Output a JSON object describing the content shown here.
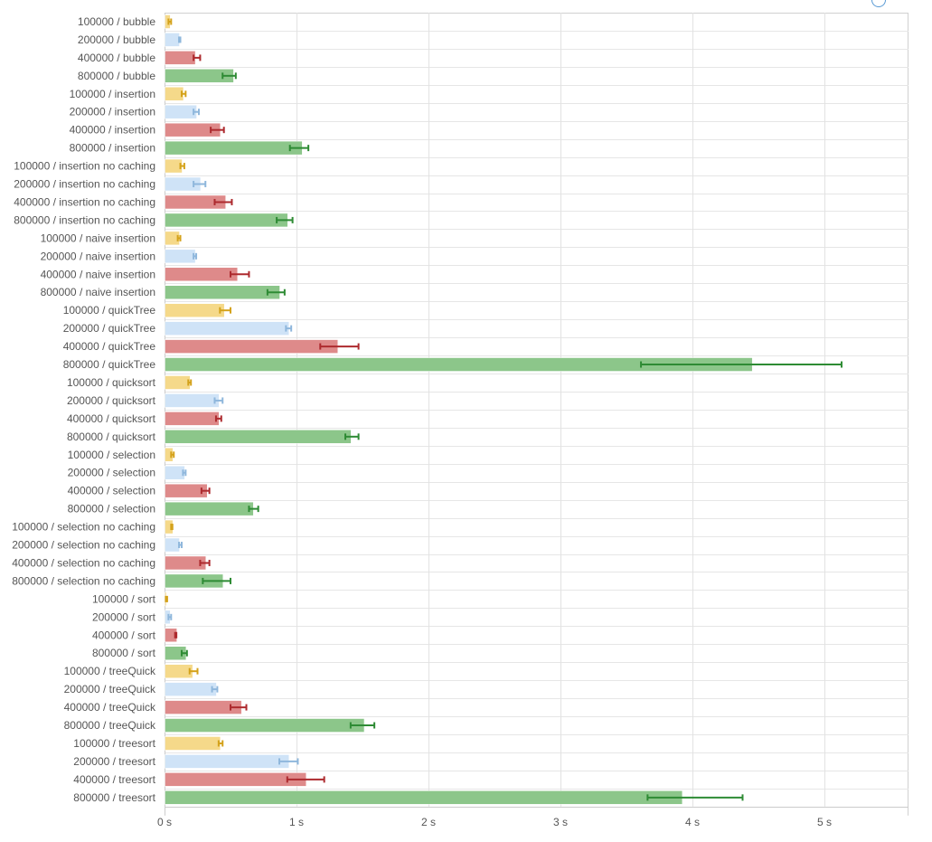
{
  "chart_data": {
    "type": "bar",
    "orientation": "horizontal",
    "title": "",
    "xlabel": "",
    "ylabel": "",
    "xlim": [
      0,
      5.65
    ],
    "x_ticks": [
      0,
      1,
      2,
      3,
      4,
      5
    ],
    "x_tick_labels": [
      "0 s",
      "1 s",
      "2 s",
      "3 s",
      "4 s",
      "5 s"
    ],
    "grid": true,
    "series_colors": {
      "100000": {
        "fill": "#f5d98a",
        "error": "#d4a21b"
      },
      "200000": {
        "fill": "#cfe3f7",
        "error": "#8fb7dc"
      },
      "400000": {
        "fill": "#de8a8a",
        "error": "#ad2a2e"
      },
      "800000": {
        "fill": "#8cc68a",
        "error": "#2e8b34"
      }
    },
    "bars": [
      {
        "label": "100000 / bubble",
        "size": "100000",
        "value": 0.04,
        "err_low": 0.03,
        "err_high": 0.05
      },
      {
        "label": "200000 / bubble",
        "size": "200000",
        "value": 0.11,
        "err_low": 0.11,
        "err_high": 0.12
      },
      {
        "label": "400000 / bubble",
        "size": "400000",
        "value": 0.23,
        "err_low": 0.22,
        "err_high": 0.27
      },
      {
        "label": "800000 / bubble",
        "size": "800000",
        "value": 0.52,
        "err_low": 0.44,
        "err_high": 0.54
      },
      {
        "label": "100000 / insertion",
        "size": "100000",
        "value": 0.14,
        "err_low": 0.13,
        "err_high": 0.16
      },
      {
        "label": "200000 / insertion",
        "size": "200000",
        "value": 0.24,
        "err_low": 0.22,
        "err_high": 0.26
      },
      {
        "label": "400000 / insertion",
        "size": "400000",
        "value": 0.42,
        "err_low": 0.35,
        "err_high": 0.45
      },
      {
        "label": "800000 / insertion",
        "size": "800000",
        "value": 1.04,
        "err_low": 0.95,
        "err_high": 1.09
      },
      {
        "label": "100000 / insertion no caching",
        "size": "100000",
        "value": 0.13,
        "err_low": 0.12,
        "err_high": 0.15
      },
      {
        "label": "200000 / insertion no caching",
        "size": "200000",
        "value": 0.27,
        "err_low": 0.22,
        "err_high": 0.31
      },
      {
        "label": "400000 / insertion no caching",
        "size": "400000",
        "value": 0.46,
        "err_low": 0.38,
        "err_high": 0.51
      },
      {
        "label": "800000 / insertion no caching",
        "size": "800000",
        "value": 0.93,
        "err_low": 0.85,
        "err_high": 0.97
      },
      {
        "label": "100000 / naive insertion",
        "size": "100000",
        "value": 0.11,
        "err_low": 0.1,
        "err_high": 0.12
      },
      {
        "label": "200000 / naive insertion",
        "size": "200000",
        "value": 0.23,
        "err_low": 0.22,
        "err_high": 0.24
      },
      {
        "label": "400000 / naive insertion",
        "size": "400000",
        "value": 0.55,
        "err_low": 0.5,
        "err_high": 0.64
      },
      {
        "label": "800000 / naive insertion",
        "size": "800000",
        "value": 0.87,
        "err_low": 0.78,
        "err_high": 0.91
      },
      {
        "label": "100000 / quickTree",
        "size": "100000",
        "value": 0.45,
        "err_low": 0.42,
        "err_high": 0.5
      },
      {
        "label": "200000 / quickTree",
        "size": "200000",
        "value": 0.94,
        "err_low": 0.92,
        "err_high": 0.96
      },
      {
        "label": "400000 / quickTree",
        "size": "400000",
        "value": 1.31,
        "err_low": 1.18,
        "err_high": 1.47
      },
      {
        "label": "800000 / quickTree",
        "size": "800000",
        "value": 4.45,
        "err_low": 3.61,
        "err_high": 5.13
      },
      {
        "label": "100000 / quicksort",
        "size": "100000",
        "value": 0.19,
        "err_low": 0.18,
        "err_high": 0.2
      },
      {
        "label": "200000 / quicksort",
        "size": "200000",
        "value": 0.41,
        "err_low": 0.38,
        "err_high": 0.44
      },
      {
        "label": "400000 / quicksort",
        "size": "400000",
        "value": 0.41,
        "err_low": 0.39,
        "err_high": 0.43
      },
      {
        "label": "800000 / quicksort",
        "size": "800000",
        "value": 1.41,
        "err_low": 1.37,
        "err_high": 1.47
      },
      {
        "label": "100000 / selection",
        "size": "100000",
        "value": 0.06,
        "err_low": 0.05,
        "err_high": 0.07
      },
      {
        "label": "200000 / selection",
        "size": "200000",
        "value": 0.15,
        "err_low": 0.14,
        "err_high": 0.16
      },
      {
        "label": "400000 / selection",
        "size": "400000",
        "value": 0.32,
        "err_low": 0.28,
        "err_high": 0.34
      },
      {
        "label": "800000 / selection",
        "size": "800000",
        "value": 0.67,
        "err_low": 0.64,
        "err_high": 0.71
      },
      {
        "label": "100000 / selection no caching",
        "size": "100000",
        "value": 0.06,
        "err_low": 0.05,
        "err_high": 0.06
      },
      {
        "label": "200000 / selection no caching",
        "size": "200000",
        "value": 0.11,
        "err_low": 0.11,
        "err_high": 0.13
      },
      {
        "label": "400000 / selection no caching",
        "size": "400000",
        "value": 0.31,
        "err_low": 0.27,
        "err_high": 0.34
      },
      {
        "label": "800000 / selection no caching",
        "size": "800000",
        "value": 0.44,
        "err_low": 0.29,
        "err_high": 0.5
      },
      {
        "label": "100000 / sort",
        "size": "100000",
        "value": 0.01,
        "err_low": 0.01,
        "err_high": 0.02
      },
      {
        "label": "200000 / sort",
        "size": "200000",
        "value": 0.04,
        "err_low": 0.03,
        "err_high": 0.05
      },
      {
        "label": "400000 / sort",
        "size": "400000",
        "value": 0.09,
        "err_low": 0.08,
        "err_high": 0.09
      },
      {
        "label": "800000 / sort",
        "size": "800000",
        "value": 0.16,
        "err_low": 0.13,
        "err_high": 0.17
      },
      {
        "label": "100000 / treeQuick",
        "size": "100000",
        "value": 0.21,
        "err_low": 0.19,
        "err_high": 0.25
      },
      {
        "label": "200000 / treeQuick",
        "size": "200000",
        "value": 0.39,
        "err_low": 0.36,
        "err_high": 0.4
      },
      {
        "label": "400000 / treeQuick",
        "size": "400000",
        "value": 0.58,
        "err_low": 0.5,
        "err_high": 0.62
      },
      {
        "label": "800000 / treeQuick",
        "size": "800000",
        "value": 1.51,
        "err_low": 1.41,
        "err_high": 1.59
      },
      {
        "label": "100000 / treesort",
        "size": "100000",
        "value": 0.42,
        "err_low": 0.41,
        "err_high": 0.44
      },
      {
        "label": "200000 / treesort",
        "size": "200000",
        "value": 0.94,
        "err_low": 0.87,
        "err_high": 1.01
      },
      {
        "label": "400000 / treesort",
        "size": "400000",
        "value": 1.07,
        "err_low": 0.93,
        "err_high": 1.21
      },
      {
        "label": "800000 / treesort",
        "size": "800000",
        "value": 3.92,
        "err_low": 3.66,
        "err_high": 4.38
      }
    ]
  }
}
